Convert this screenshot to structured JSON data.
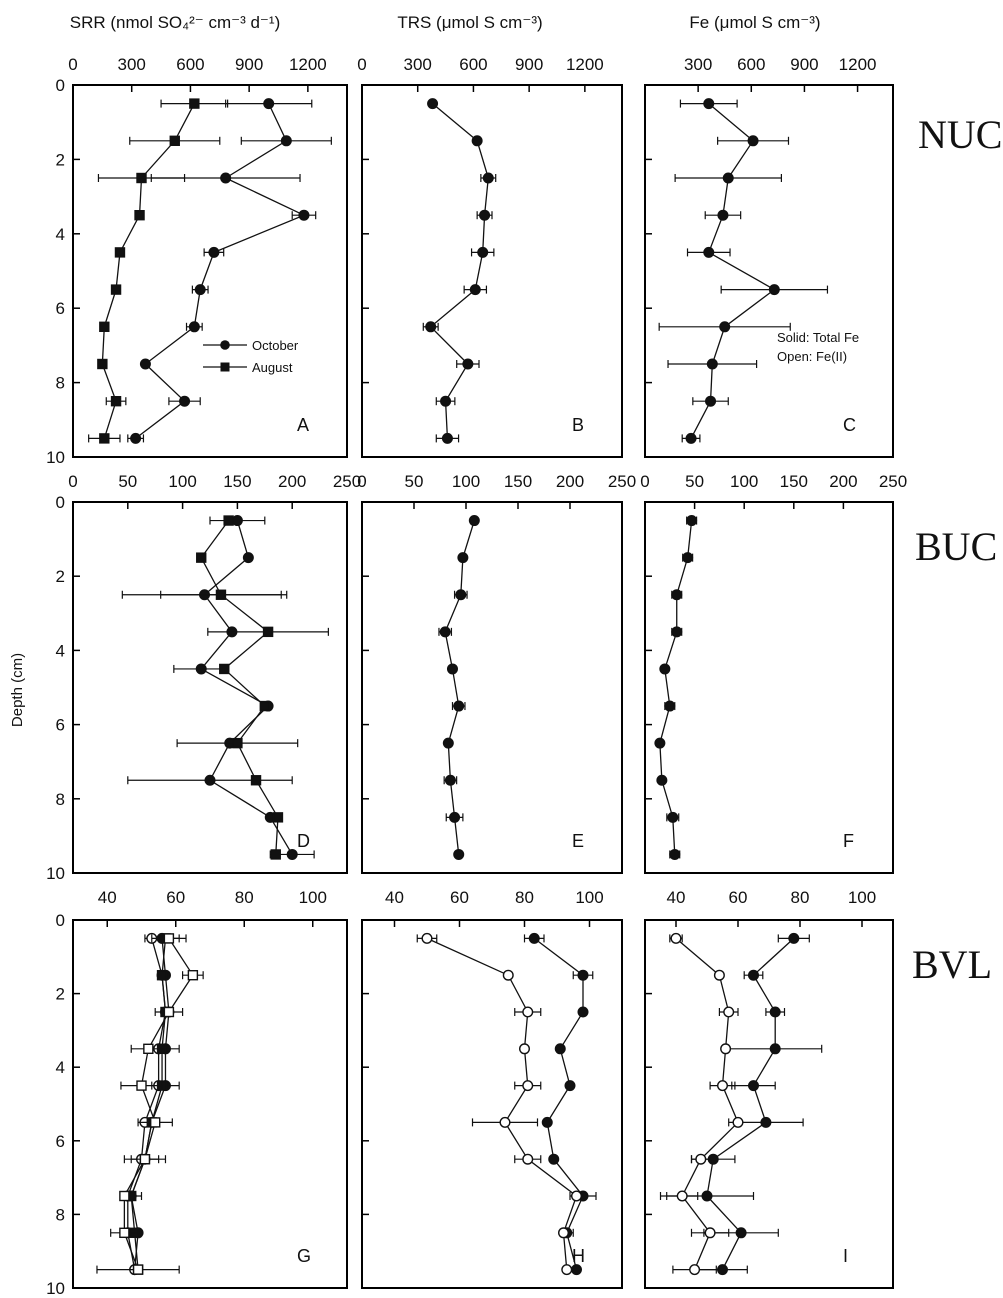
{
  "figure": {
    "col_titles": [
      "SRR (nmol SO₄²⁻ cm⁻³ d⁻¹)",
      "TRS (μmol S cm⁻³)",
      "Fe  (μmol S cm⁻³)"
    ],
    "site_labels": [
      "NUC",
      "BUC",
      "BVL"
    ],
    "ylabel": "Depth (cm)"
  },
  "chart_data": [
    {
      "panel": "A",
      "type": "scatter",
      "xlim": [
        0,
        1400
      ],
      "ylim": [
        0,
        10
      ],
      "xticks": [
        0,
        300,
        600,
        900,
        1200
      ],
      "yticks": [
        0,
        2,
        4,
        6,
        8,
        10
      ],
      "legend": {
        "position": "center-right",
        "entries": [
          "October",
          "August"
        ]
      },
      "series": [
        {
          "name": "October",
          "marker": "circle",
          "filled": true,
          "x": [
            1000,
            1090,
            780,
            1180,
            720,
            650,
            620,
            370,
            570,
            320
          ],
          "y": [
            0.5,
            1.5,
            2.5,
            3.5,
            4.5,
            5.5,
            6.5,
            7.5,
            8.5,
            9.5
          ],
          "xerr": [
            220,
            230,
            380,
            60,
            50,
            40,
            40,
            0,
            80,
            40
          ]
        },
        {
          "name": "August",
          "marker": "square",
          "filled": true,
          "x": [
            620,
            520,
            350,
            340,
            240,
            220,
            160,
            150,
            220,
            160
          ],
          "y": [
            0.5,
            1.5,
            2.5,
            3.5,
            4.5,
            5.5,
            6.5,
            7.5,
            8.5,
            9.5
          ],
          "xerr": [
            170,
            230,
            220,
            20,
            0,
            20,
            0,
            20,
            50,
            80
          ]
        }
      ]
    },
    {
      "panel": "D",
      "type": "scatter",
      "xlim": [
        0,
        250
      ],
      "ylim": [
        0,
        10
      ],
      "xticks": [
        0,
        50,
        100,
        150,
        200,
        250
      ],
      "yticks": [
        0,
        2,
        4,
        6,
        8,
        10
      ],
      "series": [
        {
          "name": "October",
          "marker": "circle",
          "filled": true,
          "x": [
            150,
            160,
            120,
            145,
            117,
            178,
            143,
            125,
            180,
            200
          ],
          "y": [
            0.5,
            1.5,
            2.5,
            3.5,
            4.5,
            5.5,
            6.5,
            7.5,
            8.5,
            9.5
          ],
          "xerr": [
            25,
            0,
            75,
            0,
            25,
            0,
            0,
            75,
            0,
            20
          ]
        },
        {
          "name": "August",
          "marker": "square",
          "filled": true,
          "x": [
            142,
            117,
            135,
            178,
            138,
            175,
            150,
            167,
            187,
            185
          ],
          "y": [
            0.5,
            1.5,
            2.5,
            3.5,
            4.5,
            5.5,
            6.5,
            7.5,
            8.5,
            9.5
          ],
          "xerr": [
            0,
            0,
            55,
            55,
            0,
            0,
            55,
            0,
            0,
            0
          ]
        }
      ]
    },
    {
      "panel": "G",
      "type": "scatter",
      "xlim": [
        30,
        110
      ],
      "ylim": [
        0,
        10
      ],
      "xticks": [
        40,
        60,
        80,
        100
      ],
      "yticks": [
        0,
        2,
        4,
        6,
        8,
        10
      ],
      "legend": {
        "position": "center-right",
        "entries": [
          "Solid: Total Fe",
          "Open:  Fe(II)"
        ]
      },
      "series": [
        {
          "name": "Total Fe October",
          "marker": "circle",
          "filled": true,
          "x": [
            56,
            57,
            58,
            57,
            57,
            53,
            51,
            47,
            49,
            48
          ],
          "y": [
            0.5,
            1.5,
            2.5,
            3.5,
            4.5,
            5.5,
            6.5,
            7.5,
            8.5,
            9.5
          ],
          "xerr": [
            5,
            0,
            4,
            4,
            4,
            0,
            4,
            3,
            0,
            0
          ]
        },
        {
          "name": "Fe(II) October",
          "marker": "circle",
          "filled": false,
          "x": [
            53,
            56,
            57,
            55,
            55,
            51,
            50,
            46,
            46,
            48
          ],
          "y": [
            0.5,
            1.5,
            2.5,
            3.5,
            4.5,
            5.5,
            6.5,
            7.5,
            8.5,
            9.5
          ],
          "xerr": [
            0,
            0,
            0,
            0,
            0,
            0,
            0,
            0,
            0,
            0
          ]
        },
        {
          "name": "Total Fe August",
          "marker": "square",
          "filled": true,
          "x": [
            57,
            56,
            57,
            56,
            56,
            53,
            51,
            47,
            48,
            49
          ],
          "y": [
            0.5,
            1.5,
            2.5,
            3.5,
            4.5,
            5.5,
            6.5,
            7.5,
            8.5,
            9.5
          ],
          "xerr": [
            0,
            0,
            0,
            0,
            0,
            0,
            0,
            0,
            0,
            0
          ]
        },
        {
          "name": "Fe(II) August",
          "marker": "square",
          "filled": false,
          "x": [
            58,
            65,
            58,
            52,
            50,
            54,
            51,
            45,
            45,
            49
          ],
          "y": [
            0.5,
            1.5,
            2.5,
            3.5,
            4.5,
            5.5,
            6.5,
            7.5,
            8.5,
            9.5
          ],
          "xerr": [
            5,
            3,
            0,
            5,
            6,
            5,
            6,
            0,
            4,
            12
          ]
        }
      ]
    },
    {
      "panel": "B",
      "type": "scatter",
      "xlim": [
        0,
        1400
      ],
      "ylim": [
        0,
        10
      ],
      "xticks": [
        0,
        300,
        600,
        900,
        1200
      ],
      "yticks": [
        0,
        2,
        4,
        6,
        8,
        10
      ],
      "series": [
        {
          "name": "October",
          "marker": "circle",
          "filled": true,
          "x": [
            380,
            620,
            680,
            660,
            650,
            610,
            370,
            570,
            450,
            460
          ],
          "y": [
            0.5,
            1.5,
            2.5,
            3.5,
            4.5,
            5.5,
            6.5,
            7.5,
            8.5,
            9.5
          ],
          "xerr": [
            0,
            0,
            40,
            40,
            60,
            60,
            40,
            60,
            50,
            60
          ]
        }
      ]
    },
    {
      "panel": "E",
      "type": "scatter",
      "xlim": [
        0,
        250
      ],
      "ylim": [
        0,
        10
      ],
      "xticks": [
        0,
        50,
        100,
        150,
        200,
        250
      ],
      "yticks": [
        0,
        2,
        4,
        6,
        8,
        10
      ],
      "series": [
        {
          "name": "October",
          "marker": "circle",
          "filled": true,
          "x": [
            108,
            97,
            95,
            80,
            87,
            93,
            83,
            85,
            89,
            93
          ],
          "y": [
            0.5,
            1.5,
            2.5,
            3.5,
            4.5,
            5.5,
            6.5,
            7.5,
            8.5,
            9.5
          ],
          "xerr": [
            0,
            0,
            6,
            6,
            0,
            6,
            0,
            6,
            8,
            0
          ]
        }
      ]
    },
    {
      "panel": "H",
      "type": "scatter",
      "xlim": [
        30,
        110
      ],
      "ylim": [
        0,
        10
      ],
      "xticks": [
        40,
        60,
        80,
        100
      ],
      "yticks": [
        0,
        2,
        4,
        6,
        8,
        10
      ],
      "series": [
        {
          "name": "Total Fe",
          "marker": "circle",
          "filled": true,
          "x": [
            83,
            98,
            98,
            91,
            94,
            87,
            89,
            98,
            93,
            96
          ],
          "y": [
            0.5,
            1.5,
            2.5,
            3.5,
            4.5,
            5.5,
            6.5,
            7.5,
            8.5,
            9.5
          ],
          "xerr": [
            3,
            3,
            0,
            0,
            0,
            0,
            0,
            4,
            2,
            0
          ]
        },
        {
          "name": "Fe(II)",
          "marker": "circle",
          "filled": false,
          "x": [
            50,
            75,
            81,
            80,
            81,
            74,
            81,
            96,
            92,
            93
          ],
          "y": [
            0.5,
            1.5,
            2.5,
            3.5,
            4.5,
            5.5,
            6.5,
            7.5,
            8.5,
            9.5
          ],
          "xerr": [
            3,
            0,
            4,
            0,
            4,
            10,
            4,
            0,
            0,
            0
          ]
        }
      ]
    },
    {
      "panel": "C",
      "type": "scatter",
      "xlim": [
        0,
        1400
      ],
      "ylim": [
        0,
        10
      ],
      "xticks": [
        300,
        600,
        900,
        1200
      ],
      "yticks": [
        0,
        2,
        4,
        6,
        8,
        10
      ],
      "series": [
        {
          "name": "October",
          "marker": "circle",
          "filled": true,
          "x": [
            360,
            610,
            470,
            440,
            360,
            730,
            450,
            380,
            370,
            260
          ],
          "y": [
            0.5,
            1.5,
            2.5,
            3.5,
            4.5,
            5.5,
            6.5,
            7.5,
            8.5,
            9.5
          ],
          "xerr": [
            160,
            200,
            300,
            100,
            120,
            300,
            370,
            250,
            100,
            50
          ]
        }
      ]
    },
    {
      "panel": "F",
      "type": "scatter",
      "xlim": [
        0,
        250
      ],
      "ylim": [
        0,
        10
      ],
      "xticks": [
        0,
        50,
        100,
        150,
        200,
        250
      ],
      "yticks": [
        0,
        2,
        4,
        6,
        8,
        10
      ],
      "series": [
        {
          "name": "October",
          "marker": "circle",
          "filled": true,
          "x": [
            47,
            43,
            32,
            32,
            20,
            25,
            15,
            17,
            28,
            30
          ],
          "y": [
            0.5,
            1.5,
            2.5,
            3.5,
            4.5,
            5.5,
            6.5,
            7.5,
            8.5,
            9.5
          ],
          "xerr": [
            5,
            5,
            5,
            5,
            0,
            5,
            0,
            0,
            6,
            5
          ]
        }
      ]
    },
    {
      "panel": "I",
      "type": "scatter",
      "xlim": [
        30,
        110
      ],
      "ylim": [
        0,
        10
      ],
      "xticks": [
        40,
        60,
        80,
        100
      ],
      "yticks": [
        0,
        2,
        4,
        6,
        8,
        10
      ],
      "series": [
        {
          "name": "Total Fe",
          "marker": "circle",
          "filled": true,
          "x": [
            78,
            65,
            72,
            72,
            65,
            69,
            52,
            50,
            61,
            55
          ],
          "y": [
            0.5,
            1.5,
            2.5,
            3.5,
            4.5,
            5.5,
            6.5,
            7.5,
            8.5,
            9.5
          ],
          "xerr": [
            5,
            3,
            3,
            15,
            7,
            12,
            7,
            15,
            12,
            8
          ]
        },
        {
          "name": "Fe(II)",
          "marker": "circle",
          "filled": false,
          "x": [
            40,
            54,
            57,
            56,
            55,
            60,
            48,
            42,
            51,
            46
          ],
          "y": [
            0.5,
            1.5,
            2.5,
            3.5,
            4.5,
            5.5,
            6.5,
            7.5,
            8.5,
            9.5
          ],
          "xerr": [
            2,
            0,
            3,
            0,
            4,
            0,
            3,
            5,
            6,
            7
          ]
        }
      ]
    }
  ]
}
